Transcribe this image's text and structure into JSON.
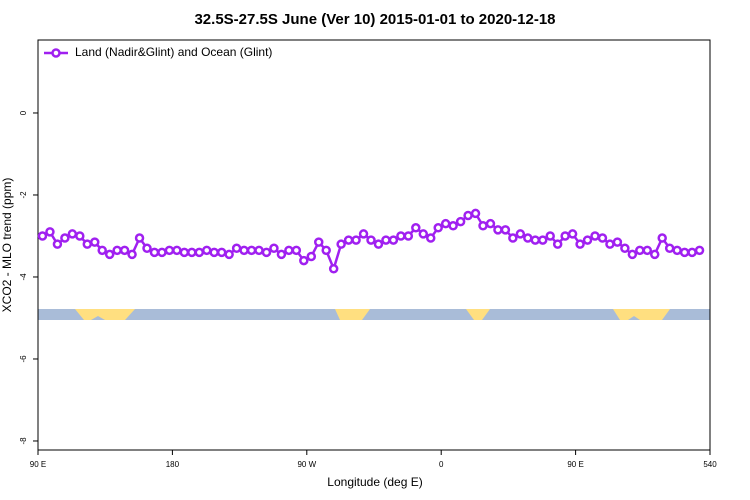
{
  "chart_data": {
    "type": "line",
    "title": "32.5S-27.5S June (Ver 10)   2015-01-01 to 2020-12-18",
    "xlabel": "Longitude (deg E)",
    "ylabel": "XCO2 - MLO trend (ppm)",
    "xlim": [
      90,
      540
    ],
    "ylim": [
      -8.22,
      1.78
    ],
    "xticks": [
      {
        "value": 90,
        "label": "90 E"
      },
      180,
      {
        "value": 270,
        "label": "90 W"
      },
      {
        "value": 360,
        "label": "0"
      },
      {
        "value": 450,
        "label": "90 E"
      },
      540
    ],
    "yticks": [
      -8,
      -6,
      -4,
      -2,
      0
    ],
    "legend": "top-left",
    "x": [
      93,
      98,
      103,
      108,
      113,
      118,
      123,
      128,
      133,
      138,
      143,
      148,
      153,
      158,
      163,
      168,
      173,
      178,
      183,
      188,
      193,
      198,
      203,
      208,
      213,
      218,
      223,
      228,
      233,
      238,
      243,
      248,
      253,
      258,
      263,
      268,
      273,
      278,
      283,
      288,
      293,
      298,
      303,
      308,
      313,
      318,
      323,
      328,
      333,
      338,
      343,
      348,
      353,
      358,
      363,
      368,
      373,
      378,
      383,
      388,
      393,
      398,
      403,
      408,
      413,
      418,
      423,
      428,
      433,
      438,
      443,
      448,
      453,
      458,
      463,
      468,
      473,
      478,
      483,
      488,
      493,
      498,
      503,
      508,
      513,
      518,
      523,
      528,
      533
    ],
    "series": [
      {
        "name": "Land (Nadir&Glint) and Ocean (Glint)",
        "color": "#a020f0",
        "values": [
          -3.0,
          -2.9,
          -3.2,
          -3.05,
          -2.95,
          -3.0,
          -3.2,
          -3.15,
          -3.35,
          -3.45,
          -3.35,
          -3.35,
          -3.45,
          -3.05,
          -3.3,
          -3.4,
          -3.4,
          -3.35,
          -3.35,
          -3.4,
          -3.4,
          -3.4,
          -3.35,
          -3.4,
          -3.4,
          -3.45,
          -3.3,
          -3.35,
          -3.35,
          -3.35,
          -3.4,
          -3.3,
          -3.45,
          -3.35,
          -3.35,
          -3.6,
          -3.5,
          -3.15,
          -3.35,
          -3.8,
          -3.2,
          -3.1,
          -3.1,
          -2.95,
          -3.1,
          -3.2,
          -3.1,
          -3.1,
          -3.0,
          -3.0,
          -2.8,
          -2.95,
          -3.05,
          -2.8,
          -2.7,
          -2.75,
          -2.65,
          -2.5,
          -2.45,
          -2.75,
          -2.7,
          -2.85,
          -2.85,
          -3.05,
          -2.95,
          -3.05,
          -3.1,
          -3.1,
          -3.0,
          -3.2,
          -3.0,
          -2.95,
          -3.2,
          -3.1,
          -3.0,
          -3.05,
          -3.2,
          -3.15,
          -3.3,
          -3.45,
          -3.35,
          -3.35,
          -3.45,
          -3.05,
          -3.3,
          -3.35,
          -3.4,
          -3.4,
          -3.35
        ]
      }
    ]
  }
}
